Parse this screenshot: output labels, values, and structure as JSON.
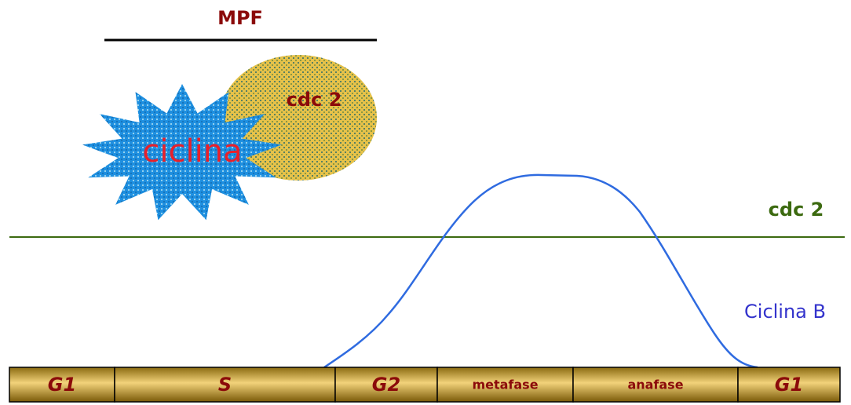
{
  "header": {
    "title": "MPF"
  },
  "complex": {
    "cdc2": "cdc 2",
    "ciclina": "ciclina"
  },
  "lines": {
    "cdc2": "cdc 2",
    "ciclina_b": "Ciclina B"
  },
  "phases": [
    "G1",
    "S",
    "G2",
    "metafase",
    "anafase",
    "G1"
  ]
}
